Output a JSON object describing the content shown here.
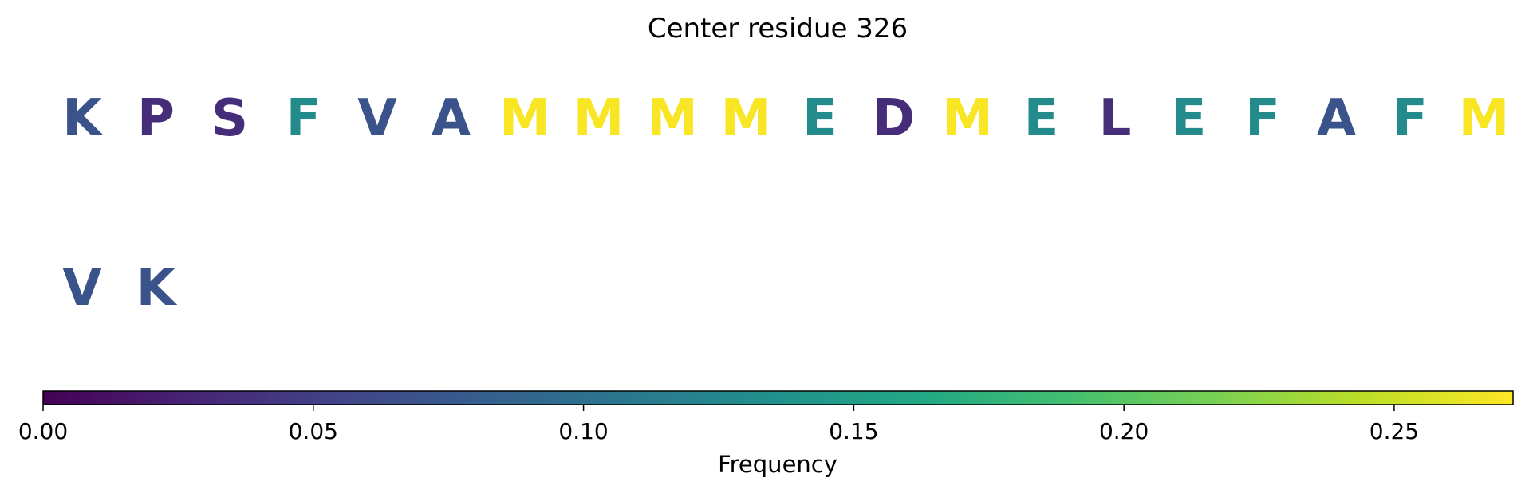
{
  "chart_data": {
    "type": "heatmap",
    "title": "Center residue 326",
    "residues": [
      {
        "letter": "K",
        "freq": 0.07
      },
      {
        "letter": "P",
        "freq": 0.035
      },
      {
        "letter": "S",
        "freq": 0.035
      },
      {
        "letter": "F",
        "freq": 0.13
      },
      {
        "letter": "V",
        "freq": 0.07
      },
      {
        "letter": "A",
        "freq": 0.07
      },
      {
        "letter": "M",
        "freq": 0.27
      },
      {
        "letter": "M",
        "freq": 0.27
      },
      {
        "letter": "M",
        "freq": 0.27
      },
      {
        "letter": "M",
        "freq": 0.27
      },
      {
        "letter": "E",
        "freq": 0.13
      },
      {
        "letter": "D",
        "freq": 0.035
      },
      {
        "letter": "M",
        "freq": 0.27
      },
      {
        "letter": "E",
        "freq": 0.13
      },
      {
        "letter": "L",
        "freq": 0.035
      },
      {
        "letter": "E",
        "freq": 0.13
      },
      {
        "letter": "F",
        "freq": 0.13
      },
      {
        "letter": "A",
        "freq": 0.07
      },
      {
        "letter": "F",
        "freq": 0.13
      },
      {
        "letter": "M",
        "freq": 0.27
      },
      {
        "letter": "V",
        "freq": 0.07
      },
      {
        "letter": "K",
        "freq": 0.07
      }
    ],
    "colorbar": {
      "label": "Frequency",
      "range": [
        0,
        0.272
      ],
      "ticks": [
        0.0,
        0.05,
        0.1,
        0.15,
        0.2,
        0.25
      ],
      "tick_labels": [
        "0.00",
        "0.05",
        "0.10",
        "0.15",
        "0.20",
        "0.25"
      ],
      "colormap": "viridis"
    }
  }
}
